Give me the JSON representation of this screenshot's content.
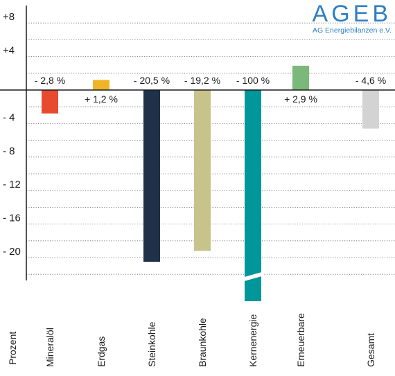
{
  "logo": {
    "name": "AGEB",
    "subtitle": "AG Energiebilanzen e.V.",
    "color": "#2f7fc1"
  },
  "chart_data": {
    "type": "bar",
    "ylabel": "Prozent",
    "yticks": [
      8,
      4,
      -4,
      -8,
      -12,
      -16,
      -20
    ],
    "ytick_labels": [
      "+8",
      "+4",
      "- 4",
      "- 8",
      "- 12",
      "- 16",
      "- 20"
    ],
    "ylim": [
      -23,
      10
    ],
    "axis_break": true,
    "grid": "dotted horizontal",
    "categories": [
      "Mineralöl",
      "Erdgas",
      "Steinkohle",
      "Braunkohle",
      "Kernenergie",
      "Erneuerbare",
      "Gesamt"
    ],
    "values": [
      -2.8,
      1.2,
      -20.5,
      -19.2,
      -100,
      2.9,
      -4.6
    ],
    "value_labels": [
      "- 2,8 %",
      "+ 1,2 %",
      "- 20,5 %",
      "- 19,2 %",
      "- 100 %",
      "+ 2,9 %",
      "- 4,6 %"
    ],
    "colors": [
      "#e84a2f",
      "#f0b429",
      "#1e3148",
      "#c8c38b",
      "#00969a",
      "#7bb97a",
      "#d3d3d3"
    ]
  }
}
